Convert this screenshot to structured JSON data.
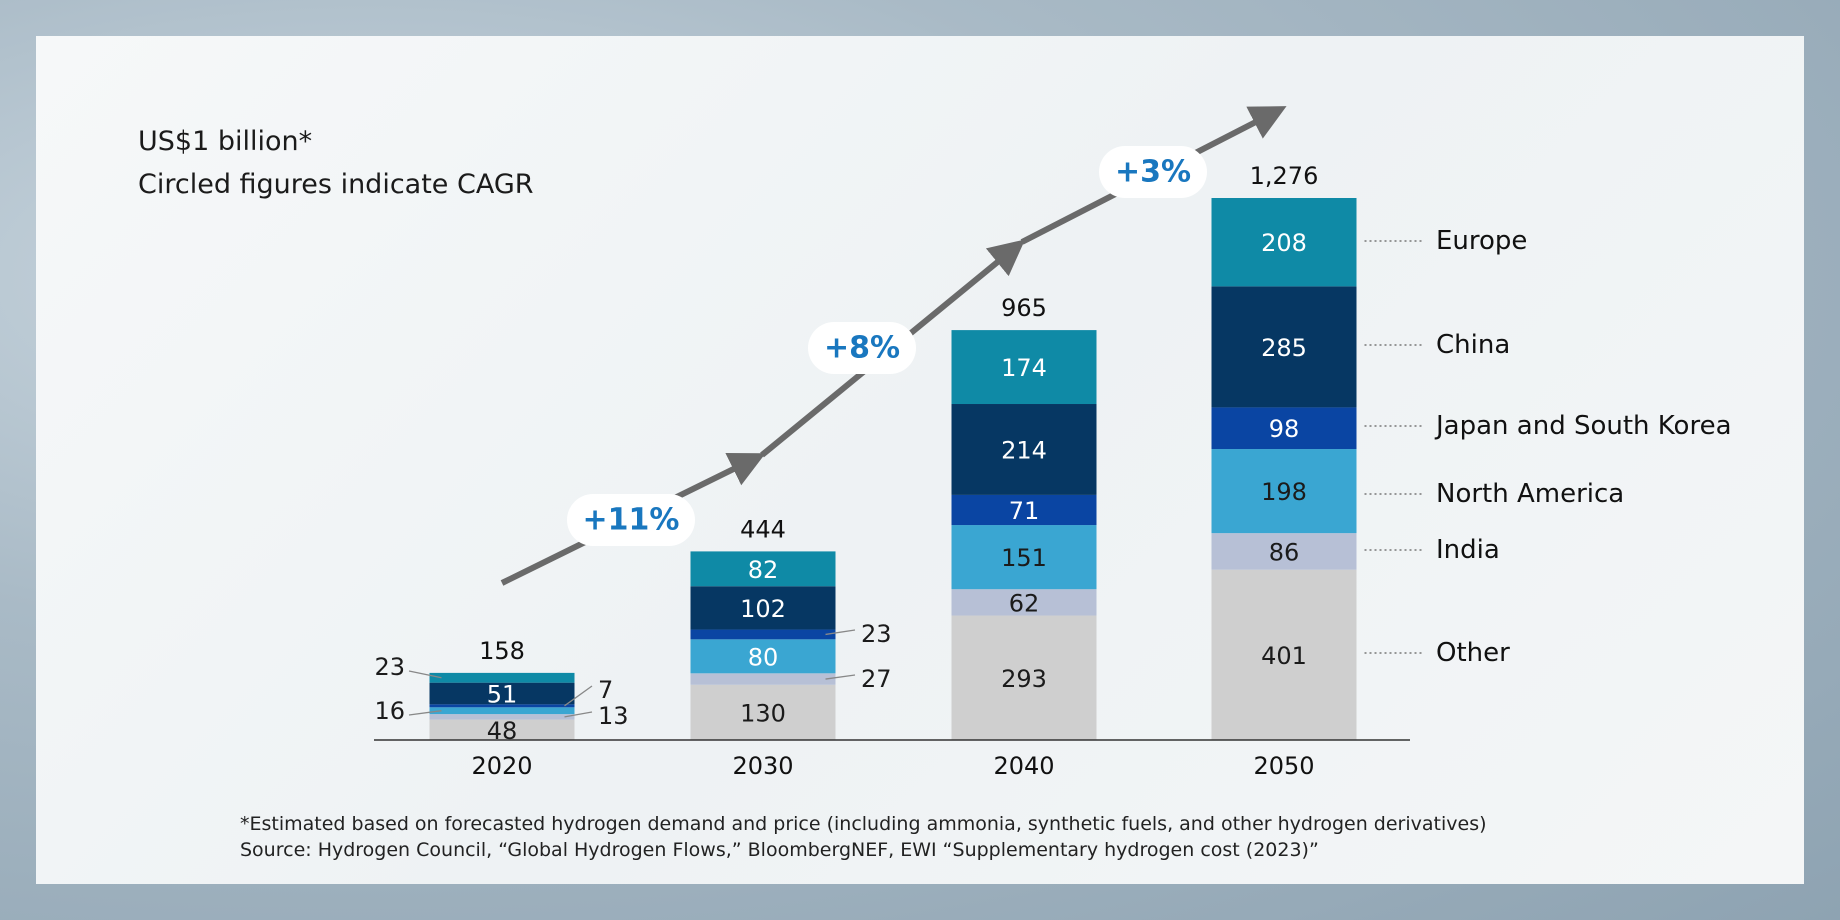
{
  "header": {
    "unit_note": "US$1 billion*",
    "cagr_note": "Circled figures indicate CAGR"
  },
  "footer": {
    "note": "*Estimated based on forecasted hydrogen demand and price (including ammonia, synthetic fuels, and other hydrogen derivatives)",
    "source": "Source: Hydrogen Council, “Global Hydrogen Flows,” BloombergNEF, EWI “Supplementary hydrogen cost (2023)”"
  },
  "colors": {
    "Other": "#cfcfcf",
    "India": "#b7c0d6",
    "North America": "#3aa6d2",
    "Japan and South Korea": "#0a45a3",
    "China": "#063763",
    "Europe": "#0f8aa6",
    "arrow": "#6a6a6a",
    "cagr_text": "#1977bf"
  },
  "chart_data": {
    "type": "bar",
    "stacked": true,
    "title": "",
    "xlabel": "",
    "ylabel": "US$1 billion",
    "ylim": [
      0,
      1276
    ],
    "categories": [
      "2020",
      "2030",
      "2040",
      "2050"
    ],
    "series": [
      {
        "name": "Other",
        "values": [
          48,
          130,
          293,
          401
        ]
      },
      {
        "name": "India",
        "values": [
          13,
          27,
          62,
          86
        ]
      },
      {
        "name": "North America",
        "values": [
          16,
          80,
          151,
          198
        ]
      },
      {
        "name": "Japan and South Korea",
        "values": [
          7,
          23,
          71,
          98
        ]
      },
      {
        "name": "China",
        "values": [
          51,
          102,
          214,
          285
        ]
      },
      {
        "name": "Europe",
        "values": [
          23,
          82,
          174,
          208
        ]
      }
    ],
    "totals": [
      "158",
      "444",
      "965",
      "1,276"
    ],
    "cagr": [
      "+11%",
      "+8%",
      "+3%"
    ],
    "legend": [
      "Europe",
      "China",
      "Japan and South Korea",
      "North America",
      "India",
      "Other"
    ]
  }
}
